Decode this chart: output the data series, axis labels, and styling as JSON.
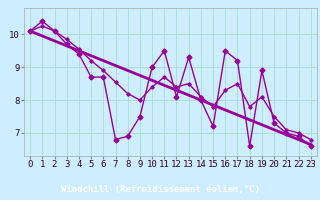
{
  "title": "",
  "xlabel": "Windchill (Refroidissement éolien,°C)",
  "hours": [
    0,
    1,
    2,
    3,
    4,
    5,
    6,
    7,
    8,
    9,
    10,
    11,
    12,
    13,
    14,
    15,
    16,
    17,
    18,
    19,
    20,
    21,
    22,
    23
  ],
  "data_line": [
    10.1,
    10.4,
    10.1,
    9.7,
    9.4,
    8.7,
    8.7,
    6.8,
    6.9,
    7.5,
    9.0,
    9.5,
    8.1,
    9.3,
    8.0,
    7.2,
    9.5,
    9.2,
    6.6,
    8.9,
    7.3,
    7.0,
    6.9,
    6.6
  ],
  "smooth_line": [
    10.1,
    10.25,
    10.1,
    9.85,
    9.55,
    9.2,
    8.9,
    8.55,
    8.2,
    8.0,
    8.4,
    8.7,
    8.4,
    8.5,
    8.1,
    7.8,
    8.3,
    8.5,
    7.8,
    8.1,
    7.5,
    7.1,
    7.0,
    6.8
  ],
  "regression_line": [
    10.1,
    9.95,
    9.8,
    9.65,
    9.5,
    9.35,
    9.2,
    9.05,
    8.9,
    8.75,
    8.6,
    8.45,
    8.3,
    8.15,
    8.0,
    7.85,
    7.7,
    7.55,
    7.4,
    7.25,
    7.1,
    6.95,
    6.8,
    6.65
  ],
  "line_color": "#990099",
  "bg_color": "#cceeff",
  "grid_color": "#aaddcc",
  "bottom_bar_color": "#9900aa",
  "bottom_bar_text_color": "#ffffff",
  "yticks": [
    7,
    8,
    9,
    10
  ],
  "ylim": [
    6.3,
    10.8
  ],
  "xlim": [
    -0.5,
    23.5
  ],
  "marker_size": 2.5,
  "line_width": 1.0,
  "xlabel_fontsize": 6.5,
  "tick_fontsize": 6.5
}
